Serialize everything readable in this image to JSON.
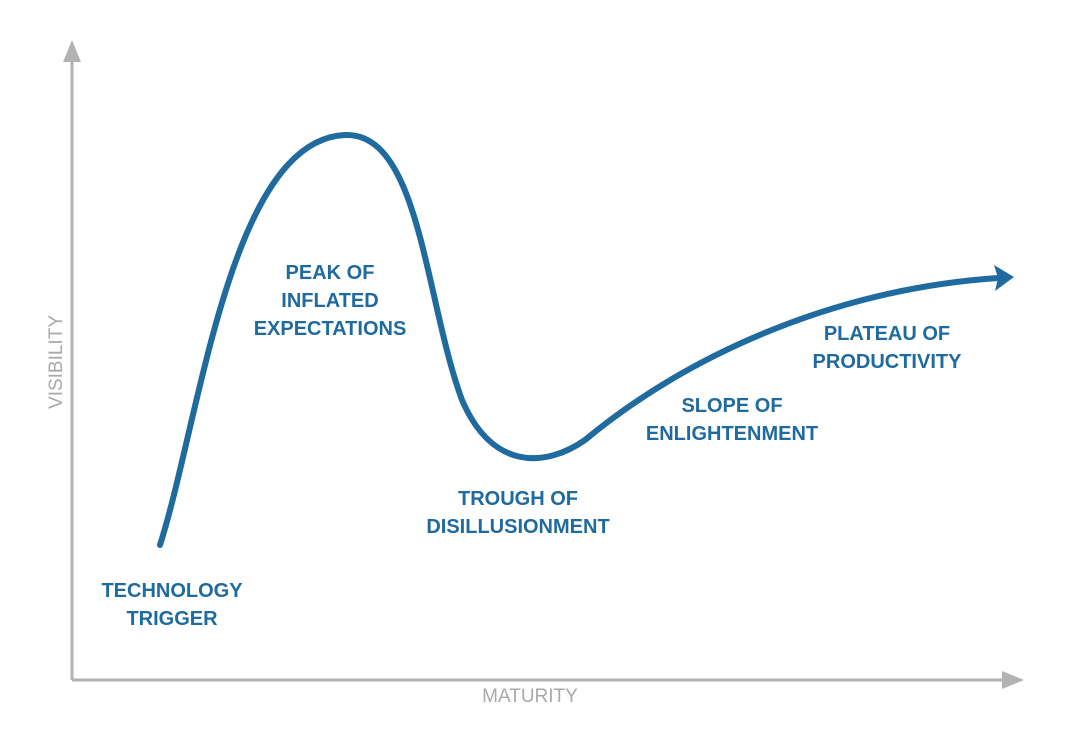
{
  "axes": {
    "y_label": "VISIBILITY",
    "x_label": "MATURITY"
  },
  "phases": [
    {
      "lines": [
        "TECHNOLOGY",
        "TRIGGER"
      ]
    },
    {
      "lines": [
        "PEAK OF",
        "INFLATED",
        "EXPECTATIONS"
      ]
    },
    {
      "lines": [
        "TROUGH OF",
        "DISILLUSIONMENT"
      ]
    },
    {
      "lines": [
        "SLOPE OF",
        "ENLIGHTENMENT"
      ]
    },
    {
      "lines": [
        "PLATEAU OF",
        "PRODUCTIVITY"
      ]
    }
  ]
}
